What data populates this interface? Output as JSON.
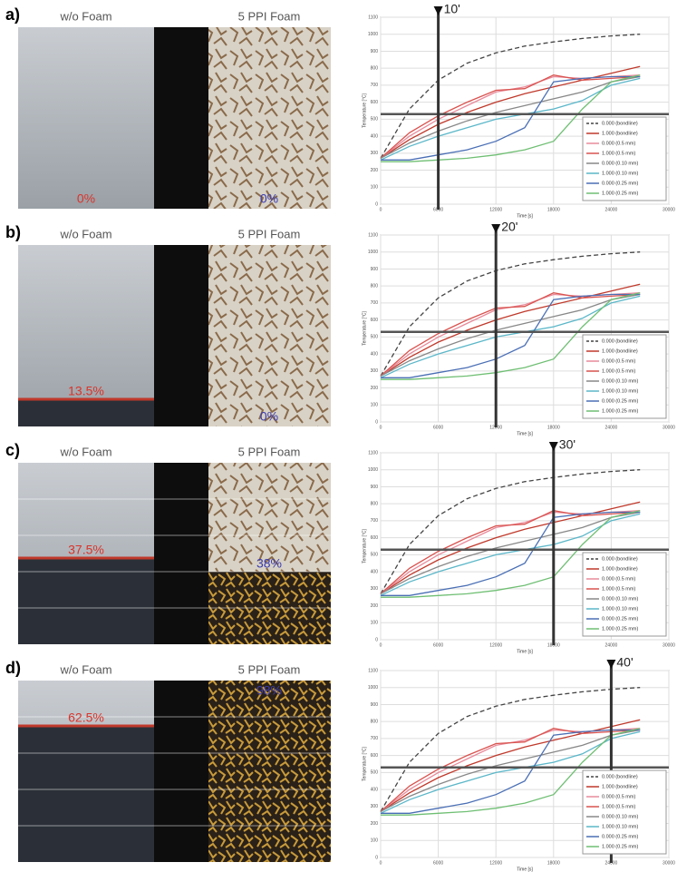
{
  "panels": [
    {
      "label": "a)",
      "left_title": "w/o Foam",
      "right_title": "5 PPI Foam",
      "left_value": "0%",
      "right_value": "0%"
    },
    {
      "label": "b)",
      "left_title": "w/o Foam",
      "right_title": "5 PPI Foam",
      "left_value": "13.5%",
      "right_value": "0%"
    },
    {
      "label": "c)",
      "left_title": "w/o Foam",
      "right_title": "5 PPI Foam",
      "left_value": "37.5%",
      "right_value": "38%"
    },
    {
      "label": "d)",
      "left_title": "w/o Foam",
      "right_title": "5 PPI Foam",
      "left_value": "62.5%",
      "right_value": "98%"
    }
  ],
  "chart_data": [
    {
      "type": "line",
      "xlabel": "Time [s]",
      "ylabel": "Temperature [°C]",
      "annotation": "10'",
      "marker_x": 6000,
      "threshold": 530,
      "xlim": [
        0,
        30000
      ],
      "ylim": [
        0,
        1100
      ],
      "xticks": [
        0,
        6000,
        12000,
        18000,
        24000,
        30000
      ],
      "yticks": [
        0,
        100,
        200,
        300,
        400,
        500,
        600,
        700,
        800,
        900,
        1000,
        1100
      ],
      "grid": true,
      "x": [
        0,
        3000,
        6000,
        9000,
        12000,
        15000,
        18000,
        21000,
        24000,
        27000
      ],
      "series": [
        {
          "name": "0.000 (bondline)",
          "color": "#444444",
          "dashed": true,
          "values": [
            270,
            560,
            730,
            830,
            890,
            930,
            955,
            975,
            990,
            1000
          ]
        },
        {
          "name": "1.000 (bondline)",
          "color": "#c0392b",
          "values": [
            270,
            380,
            470,
            540,
            600,
            650,
            690,
            730,
            770,
            810
          ]
        },
        {
          "name": "0.000 (0.5 mm)",
          "color": "#e88a9a",
          "values": [
            270,
            400,
            500,
            580,
            660,
            690,
            750,
            740,
            750,
            760
          ]
        },
        {
          "name": "1.000 (0.5 mm)",
          "color": "#d9534f",
          "values": [
            270,
            420,
            520,
            600,
            670,
            680,
            760,
            730,
            740,
            750
          ]
        },
        {
          "name": "0.000 (0.10 mm)",
          "color": "#888888",
          "values": [
            270,
            360,
            430,
            490,
            540,
            580,
            620,
            660,
            720,
            750
          ]
        },
        {
          "name": "1.000 (0.10 mm)",
          "color": "#5bb7c9",
          "values": [
            260,
            340,
            400,
            450,
            500,
            530,
            560,
            610,
            700,
            740
          ]
        },
        {
          "name": "0.000 (0.25 mm)",
          "color": "#4a6fb5",
          "values": [
            260,
            260,
            290,
            320,
            370,
            450,
            720,
            740,
            750,
            750
          ]
        },
        {
          "name": "1.000 (0.25 mm)",
          "color": "#6fbf73",
          "values": [
            250,
            250,
            260,
            270,
            290,
            320,
            370,
            560,
            720,
            760
          ]
        }
      ]
    },
    {
      "type": "line",
      "xlabel": "Time [s]",
      "ylabel": "Temperature [°C]",
      "annotation": "20'",
      "marker_x": 12000,
      "threshold": 530,
      "xlim": [
        0,
        30000
      ],
      "ylim": [
        0,
        1100
      ],
      "xticks": [
        0,
        6000,
        12000,
        18000,
        24000,
        30000
      ],
      "yticks": [
        0,
        100,
        200,
        300,
        400,
        500,
        600,
        700,
        800,
        900,
        1000,
        1100
      ],
      "grid": true,
      "x": [
        0,
        3000,
        6000,
        9000,
        12000,
        15000,
        18000,
        21000,
        24000,
        27000
      ],
      "series": [
        {
          "name": "0.000 (bondline)",
          "color": "#444444",
          "dashed": true,
          "values": [
            270,
            560,
            730,
            830,
            890,
            930,
            955,
            975,
            990,
            1000
          ]
        },
        {
          "name": "1.000 (bondline)",
          "color": "#c0392b",
          "values": [
            270,
            380,
            470,
            540,
            600,
            650,
            690,
            730,
            770,
            810
          ]
        },
        {
          "name": "0.000 (0.5 mm)",
          "color": "#e88a9a",
          "values": [
            270,
            400,
            500,
            580,
            660,
            690,
            750,
            740,
            750,
            760
          ]
        },
        {
          "name": "1.000 (0.5 mm)",
          "color": "#d9534f",
          "values": [
            270,
            420,
            520,
            600,
            670,
            680,
            760,
            730,
            740,
            750
          ]
        },
        {
          "name": "0.000 (0.10 mm)",
          "color": "#888888",
          "values": [
            270,
            360,
            430,
            490,
            540,
            580,
            620,
            660,
            720,
            750
          ]
        },
        {
          "name": "1.000 (0.10 mm)",
          "color": "#5bb7c9",
          "values": [
            260,
            340,
            400,
            450,
            500,
            530,
            560,
            610,
            700,
            740
          ]
        },
        {
          "name": "0.000 (0.25 mm)",
          "color": "#4a6fb5",
          "values": [
            260,
            260,
            290,
            320,
            370,
            450,
            720,
            740,
            750,
            750
          ]
        },
        {
          "name": "1.000 (0.25 mm)",
          "color": "#6fbf73",
          "values": [
            250,
            250,
            260,
            270,
            290,
            320,
            370,
            560,
            720,
            760
          ]
        }
      ]
    },
    {
      "type": "line",
      "xlabel": "Time [s]",
      "ylabel": "Temperature [°C]",
      "annotation": "30'",
      "marker_x": 18000,
      "threshold": 530,
      "xlim": [
        0,
        30000
      ],
      "ylim": [
        0,
        1100
      ],
      "xticks": [
        0,
        6000,
        12000,
        18000,
        24000,
        30000
      ],
      "yticks": [
        0,
        100,
        200,
        300,
        400,
        500,
        600,
        700,
        800,
        900,
        1000,
        1100
      ],
      "grid": true,
      "x": [
        0,
        3000,
        6000,
        9000,
        12000,
        15000,
        18000,
        21000,
        24000,
        27000
      ],
      "series": [
        {
          "name": "0.000 (bondline)",
          "color": "#444444",
          "dashed": true,
          "values": [
            270,
            560,
            730,
            830,
            890,
            930,
            955,
            975,
            990,
            1000
          ]
        },
        {
          "name": "1.000 (bondline)",
          "color": "#c0392b",
          "values": [
            270,
            380,
            470,
            540,
            600,
            650,
            690,
            730,
            770,
            810
          ]
        },
        {
          "name": "0.000 (0.5 mm)",
          "color": "#e88a9a",
          "values": [
            270,
            400,
            500,
            580,
            660,
            690,
            750,
            740,
            750,
            760
          ]
        },
        {
          "name": "1.000 (0.5 mm)",
          "color": "#d9534f",
          "values": [
            270,
            420,
            520,
            600,
            670,
            680,
            760,
            730,
            740,
            750
          ]
        },
        {
          "name": "0.000 (0.10 mm)",
          "color": "#888888",
          "values": [
            270,
            360,
            430,
            490,
            540,
            580,
            620,
            660,
            720,
            750
          ]
        },
        {
          "name": "1.000 (0.10 mm)",
          "color": "#5bb7c9",
          "values": [
            260,
            340,
            400,
            450,
            500,
            530,
            560,
            610,
            700,
            740
          ]
        },
        {
          "name": "0.000 (0.25 mm)",
          "color": "#4a6fb5",
          "values": [
            260,
            260,
            290,
            320,
            370,
            450,
            720,
            740,
            750,
            750
          ]
        },
        {
          "name": "1.000 (0.25 mm)",
          "color": "#6fbf73",
          "values": [
            250,
            250,
            260,
            270,
            290,
            320,
            370,
            560,
            720,
            760
          ]
        }
      ]
    },
    {
      "type": "line",
      "xlabel": "Time [s]",
      "ylabel": "Temperature [°C]",
      "annotation": "40'",
      "marker_x": 24000,
      "threshold": 530,
      "xlim": [
        0,
        30000
      ],
      "ylim": [
        0,
        1100
      ],
      "xticks": [
        0,
        6000,
        12000,
        18000,
        24000,
        30000
      ],
      "yticks": [
        0,
        100,
        200,
        300,
        400,
        500,
        600,
        700,
        800,
        900,
        1000,
        1100
      ],
      "grid": true,
      "x": [
        0,
        3000,
        6000,
        9000,
        12000,
        15000,
        18000,
        21000,
        24000,
        27000
      ],
      "series": [
        {
          "name": "0.000 (bondline)",
          "color": "#444444",
          "dashed": true,
          "values": [
            270,
            560,
            730,
            830,
            890,
            930,
            955,
            975,
            990,
            1000
          ]
        },
        {
          "name": "1.000 (bondline)",
          "color": "#c0392b",
          "values": [
            270,
            380,
            470,
            540,
            600,
            650,
            690,
            730,
            770,
            810
          ]
        },
        {
          "name": "0.000 (0.5 mm)",
          "color": "#e88a9a",
          "values": [
            270,
            400,
            500,
            580,
            660,
            690,
            750,
            740,
            750,
            760
          ]
        },
        {
          "name": "1.000 (0.5 mm)",
          "color": "#d9534f",
          "values": [
            270,
            420,
            520,
            600,
            670,
            680,
            760,
            730,
            740,
            750
          ]
        },
        {
          "name": "0.000 (0.10 mm)",
          "color": "#888888",
          "values": [
            270,
            360,
            430,
            490,
            540,
            580,
            620,
            660,
            720,
            750
          ]
        },
        {
          "name": "1.000 (0.10 mm)",
          "color": "#5bb7c9",
          "values": [
            260,
            340,
            400,
            450,
            500,
            530,
            560,
            610,
            700,
            740
          ]
        },
        {
          "name": "0.000 (0.25 mm)",
          "color": "#4a6fb5",
          "values": [
            260,
            260,
            290,
            320,
            370,
            450,
            720,
            740,
            750,
            750
          ]
        },
        {
          "name": "1.000 (0.25 mm)",
          "color": "#6fbf73",
          "values": [
            250,
            250,
            260,
            270,
            290,
            320,
            370,
            560,
            720,
            760
          ]
        }
      ]
    }
  ]
}
